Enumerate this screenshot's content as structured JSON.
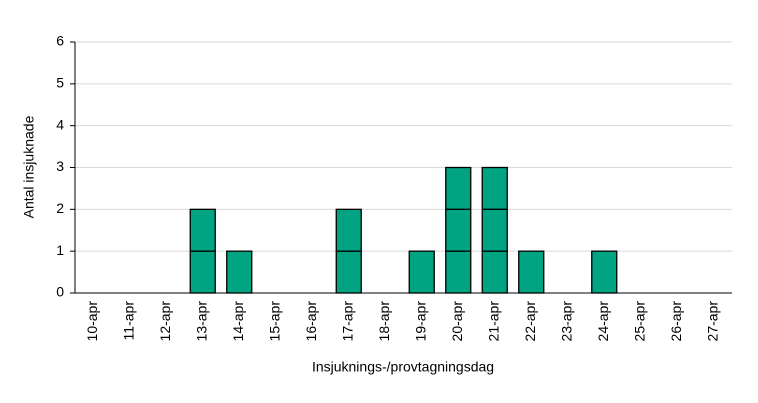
{
  "chart_data": {
    "type": "bar",
    "x_label": "Insjuknings-/provtagningsdag",
    "y_label": "Antal insjuknade",
    "categories": [
      "10-apr",
      "11-apr",
      "12-apr",
      "13-apr",
      "14-apr",
      "15-apr",
      "16-apr",
      "17-apr",
      "18-apr",
      "19-apr",
      "20-apr",
      "21-apr",
      "22-apr",
      "23-apr",
      "24-apr",
      "25-apr",
      "26-apr",
      "27-apr"
    ],
    "values": [
      0,
      0,
      0,
      2,
      1,
      0,
      0,
      2,
      0,
      1,
      3,
      3,
      1,
      0,
      1,
      0,
      0,
      0
    ],
    "color": "#00a382",
    "ylim": [
      0,
      6
    ],
    "yticks": [
      0,
      1,
      2,
      3,
      4,
      5,
      6
    ],
    "grid": true
  }
}
